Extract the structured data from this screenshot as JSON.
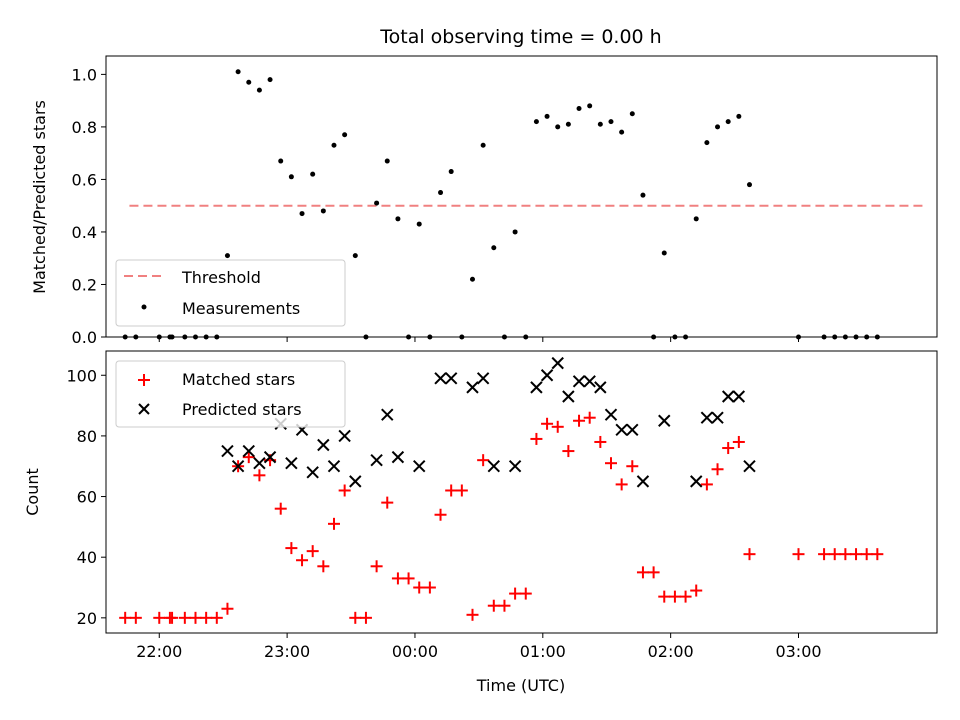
{
  "chart_data": [
    {
      "type": "scatter",
      "title": "Total observing time = 0.00 h",
      "ylabel": "Matched/Predicted stars",
      "xlabel": "",
      "xlim": [
        "21:35",
        "04:05"
      ],
      "ylim": [
        0,
        1.07
      ],
      "yticks": [
        0.0,
        0.2,
        0.4,
        0.6,
        0.8,
        1.0
      ],
      "ytick_labels": [
        "0.0",
        "0.2",
        "0.4",
        "0.6",
        "0.8",
        "1.0"
      ],
      "xticks": [
        "22:00",
        "23:00",
        "00:00",
        "01:00",
        "02:00",
        "03:00"
      ],
      "legend_position": "lower-left",
      "threshold": {
        "name": "Threshold",
        "color": "#f08080",
        "style": "dashed",
        "y": 0.5,
        "x_start": "21:46",
        "x_end": "03:59"
      },
      "series": [
        {
          "name": "Measurements",
          "color": "#000000",
          "points": [
            [
              "21:44",
              0
            ],
            [
              "21:49",
              0
            ],
            [
              "22:00",
              0
            ],
            [
              "22:05",
              0
            ],
            [
              "22:06",
              0
            ],
            [
              "22:12",
              0
            ],
            [
              "22:17",
              0
            ],
            [
              "22:22",
              0
            ],
            [
              "22:27",
              0
            ],
            [
              "22:32",
              0.31
            ],
            [
              "22:37",
              1.01
            ],
            [
              "22:42",
              0.97
            ],
            [
              "22:47",
              0.94
            ],
            [
              "22:52",
              0.98
            ],
            [
              "22:57",
              0.67
            ],
            [
              "23:02",
              0.61
            ],
            [
              "23:07",
              0.47
            ],
            [
              "23:12",
              0.62
            ],
            [
              "23:17",
              0.48
            ],
            [
              "23:22",
              0.73
            ],
            [
              "23:27",
              0.77
            ],
            [
              "23:32",
              0.31
            ],
            [
              "23:37",
              0
            ],
            [
              "23:42",
              0.51
            ],
            [
              "23:47",
              0.67
            ],
            [
              "23:52",
              0.45
            ],
            [
              "23:57",
              0
            ],
            [
              "00:02",
              0.43
            ],
            [
              "00:07",
              0
            ],
            [
              "00:12",
              0.55
            ],
            [
              "00:17",
              0.63
            ],
            [
              "00:22",
              0
            ],
            [
              "00:27",
              0.22
            ],
            [
              "00:32",
              0.73
            ],
            [
              "00:37",
              0.34
            ],
            [
              "00:42",
              0
            ],
            [
              "00:47",
              0.4
            ],
            [
              "00:52",
              0
            ],
            [
              "00:57",
              0.82
            ],
            [
              "01:02",
              0.84
            ],
            [
              "01:07",
              0.8
            ],
            [
              "01:12",
              0.81
            ],
            [
              "01:17",
              0.87
            ],
            [
              "01:22",
              0.88
            ],
            [
              "01:27",
              0.81
            ],
            [
              "01:32",
              0.82
            ],
            [
              "01:37",
              0.78
            ],
            [
              "01:42",
              0.85
            ],
            [
              "01:47",
              0.54
            ],
            [
              "01:52",
              0
            ],
            [
              "01:57",
              0.32
            ],
            [
              "02:02",
              0
            ],
            [
              "02:07",
              0
            ],
            [
              "02:12",
              0.45
            ],
            [
              "02:17",
              0.74
            ],
            [
              "02:22",
              0.8
            ],
            [
              "02:27",
              0.82
            ],
            [
              "02:32",
              0.84
            ],
            [
              "02:37",
              0.58
            ],
            [
              "03:00",
              0
            ],
            [
              "03:12",
              0
            ],
            [
              "03:17",
              0
            ],
            [
              "03:22",
              0
            ],
            [
              "03:27",
              0
            ],
            [
              "03:32",
              0
            ],
            [
              "03:37",
              0
            ]
          ]
        }
      ]
    },
    {
      "type": "scatter",
      "title": "",
      "ylabel": "Count",
      "xlabel": "Time (UTC)",
      "xlim": [
        "21:35",
        "04:05"
      ],
      "ylim": [
        15,
        108
      ],
      "yticks": [
        20,
        40,
        60,
        80,
        100
      ],
      "ytick_labels": [
        "20",
        "40",
        "60",
        "80",
        "100"
      ],
      "xticks": [
        "22:00",
        "23:00",
        "00:00",
        "01:00",
        "02:00",
        "03:00"
      ],
      "xtick_labels": [
        "22:00",
        "23:00",
        "00:00",
        "01:00",
        "02:00",
        "03:00"
      ],
      "legend_position": "upper-left",
      "series": [
        {
          "name": "Matched stars",
          "color": "#ff0000",
          "marker": "plus",
          "points": [
            [
              "21:44",
              20
            ],
            [
              "21:49",
              20
            ],
            [
              "22:00",
              20
            ],
            [
              "22:05",
              20
            ],
            [
              "22:06",
              20
            ],
            [
              "22:12",
              20
            ],
            [
              "22:17",
              20
            ],
            [
              "22:22",
              20
            ],
            [
              "22:27",
              20
            ],
            [
              "22:32",
              23
            ],
            [
              "22:37",
              70
            ],
            [
              "22:42",
              73
            ],
            [
              "22:47",
              67
            ],
            [
              "22:52",
              72
            ],
            [
              "22:57",
              56
            ],
            [
              "23:02",
              43
            ],
            [
              "23:07",
              39
            ],
            [
              "23:12",
              42
            ],
            [
              "23:17",
              37
            ],
            [
              "23:22",
              51
            ],
            [
              "23:27",
              62
            ],
            [
              "23:32",
              20
            ],
            [
              "23:37",
              20
            ],
            [
              "23:42",
              37
            ],
            [
              "23:47",
              58
            ],
            [
              "23:52",
              33
            ],
            [
              "23:57",
              33
            ],
            [
              "00:02",
              30
            ],
            [
              "00:07",
              30
            ],
            [
              "00:12",
              54
            ],
            [
              "00:17",
              62
            ],
            [
              "00:22",
              62
            ],
            [
              "00:27",
              21
            ],
            [
              "00:32",
              72
            ],
            [
              "00:37",
              24
            ],
            [
              "00:42",
              24
            ],
            [
              "00:47",
              28
            ],
            [
              "00:52",
              28
            ],
            [
              "00:57",
              79
            ],
            [
              "01:02",
              84
            ],
            [
              "01:07",
              83
            ],
            [
              "01:12",
              75
            ],
            [
              "01:17",
              85
            ],
            [
              "01:22",
              86
            ],
            [
              "01:27",
              78
            ],
            [
              "01:32",
              71
            ],
            [
              "01:37",
              64
            ],
            [
              "01:42",
              70
            ],
            [
              "01:47",
              35
            ],
            [
              "01:52",
              35
            ],
            [
              "01:57",
              27
            ],
            [
              "02:02",
              27
            ],
            [
              "02:07",
              27
            ],
            [
              "02:12",
              29
            ],
            [
              "02:17",
              64
            ],
            [
              "02:22",
              69
            ],
            [
              "02:27",
              76
            ],
            [
              "02:32",
              78
            ],
            [
              "02:37",
              41
            ],
            [
              "03:00",
              41
            ],
            [
              "03:12",
              41
            ],
            [
              "03:17",
              41
            ],
            [
              "03:22",
              41
            ],
            [
              "03:27",
              41
            ],
            [
              "03:32",
              41
            ],
            [
              "03:37",
              41
            ]
          ]
        },
        {
          "name": "Predicted stars",
          "color": "#000000",
          "marker": "x",
          "points": [
            [
              "22:32",
              75
            ],
            [
              "22:37",
              70
            ],
            [
              "22:42",
              75
            ],
            [
              "22:47",
              71
            ],
            [
              "22:52",
              73
            ],
            [
              "22:57",
              84
            ],
            [
              "23:02",
              71
            ],
            [
              "23:07",
              82
            ],
            [
              "23:12",
              68
            ],
            [
              "23:17",
              77
            ],
            [
              "23:22",
              70
            ],
            [
              "23:27",
              80
            ],
            [
              "23:32",
              65
            ],
            [
              "23:42",
              72
            ],
            [
              "23:47",
              87
            ],
            [
              "23:52",
              73
            ],
            [
              "00:02",
              70
            ],
            [
              "00:12",
              99
            ],
            [
              "00:17",
              99
            ],
            [
              "00:27",
              96
            ],
            [
              "00:32",
              99
            ],
            [
              "00:37",
              70
            ],
            [
              "00:47",
              70
            ],
            [
              "00:57",
              96
            ],
            [
              "01:02",
              100
            ],
            [
              "01:07",
              104
            ],
            [
              "01:12",
              93
            ],
            [
              "01:17",
              98
            ],
            [
              "01:22",
              98
            ],
            [
              "01:27",
              96
            ],
            [
              "01:32",
              87
            ],
            [
              "01:37",
              82
            ],
            [
              "01:42",
              82
            ],
            [
              "01:47",
              65
            ],
            [
              "01:57",
              85
            ],
            [
              "02:12",
              65
            ],
            [
              "02:17",
              86
            ],
            [
              "02:22",
              86
            ],
            [
              "02:27",
              93
            ],
            [
              "02:32",
              93
            ],
            [
              "02:37",
              70
            ]
          ]
        }
      ]
    }
  ]
}
